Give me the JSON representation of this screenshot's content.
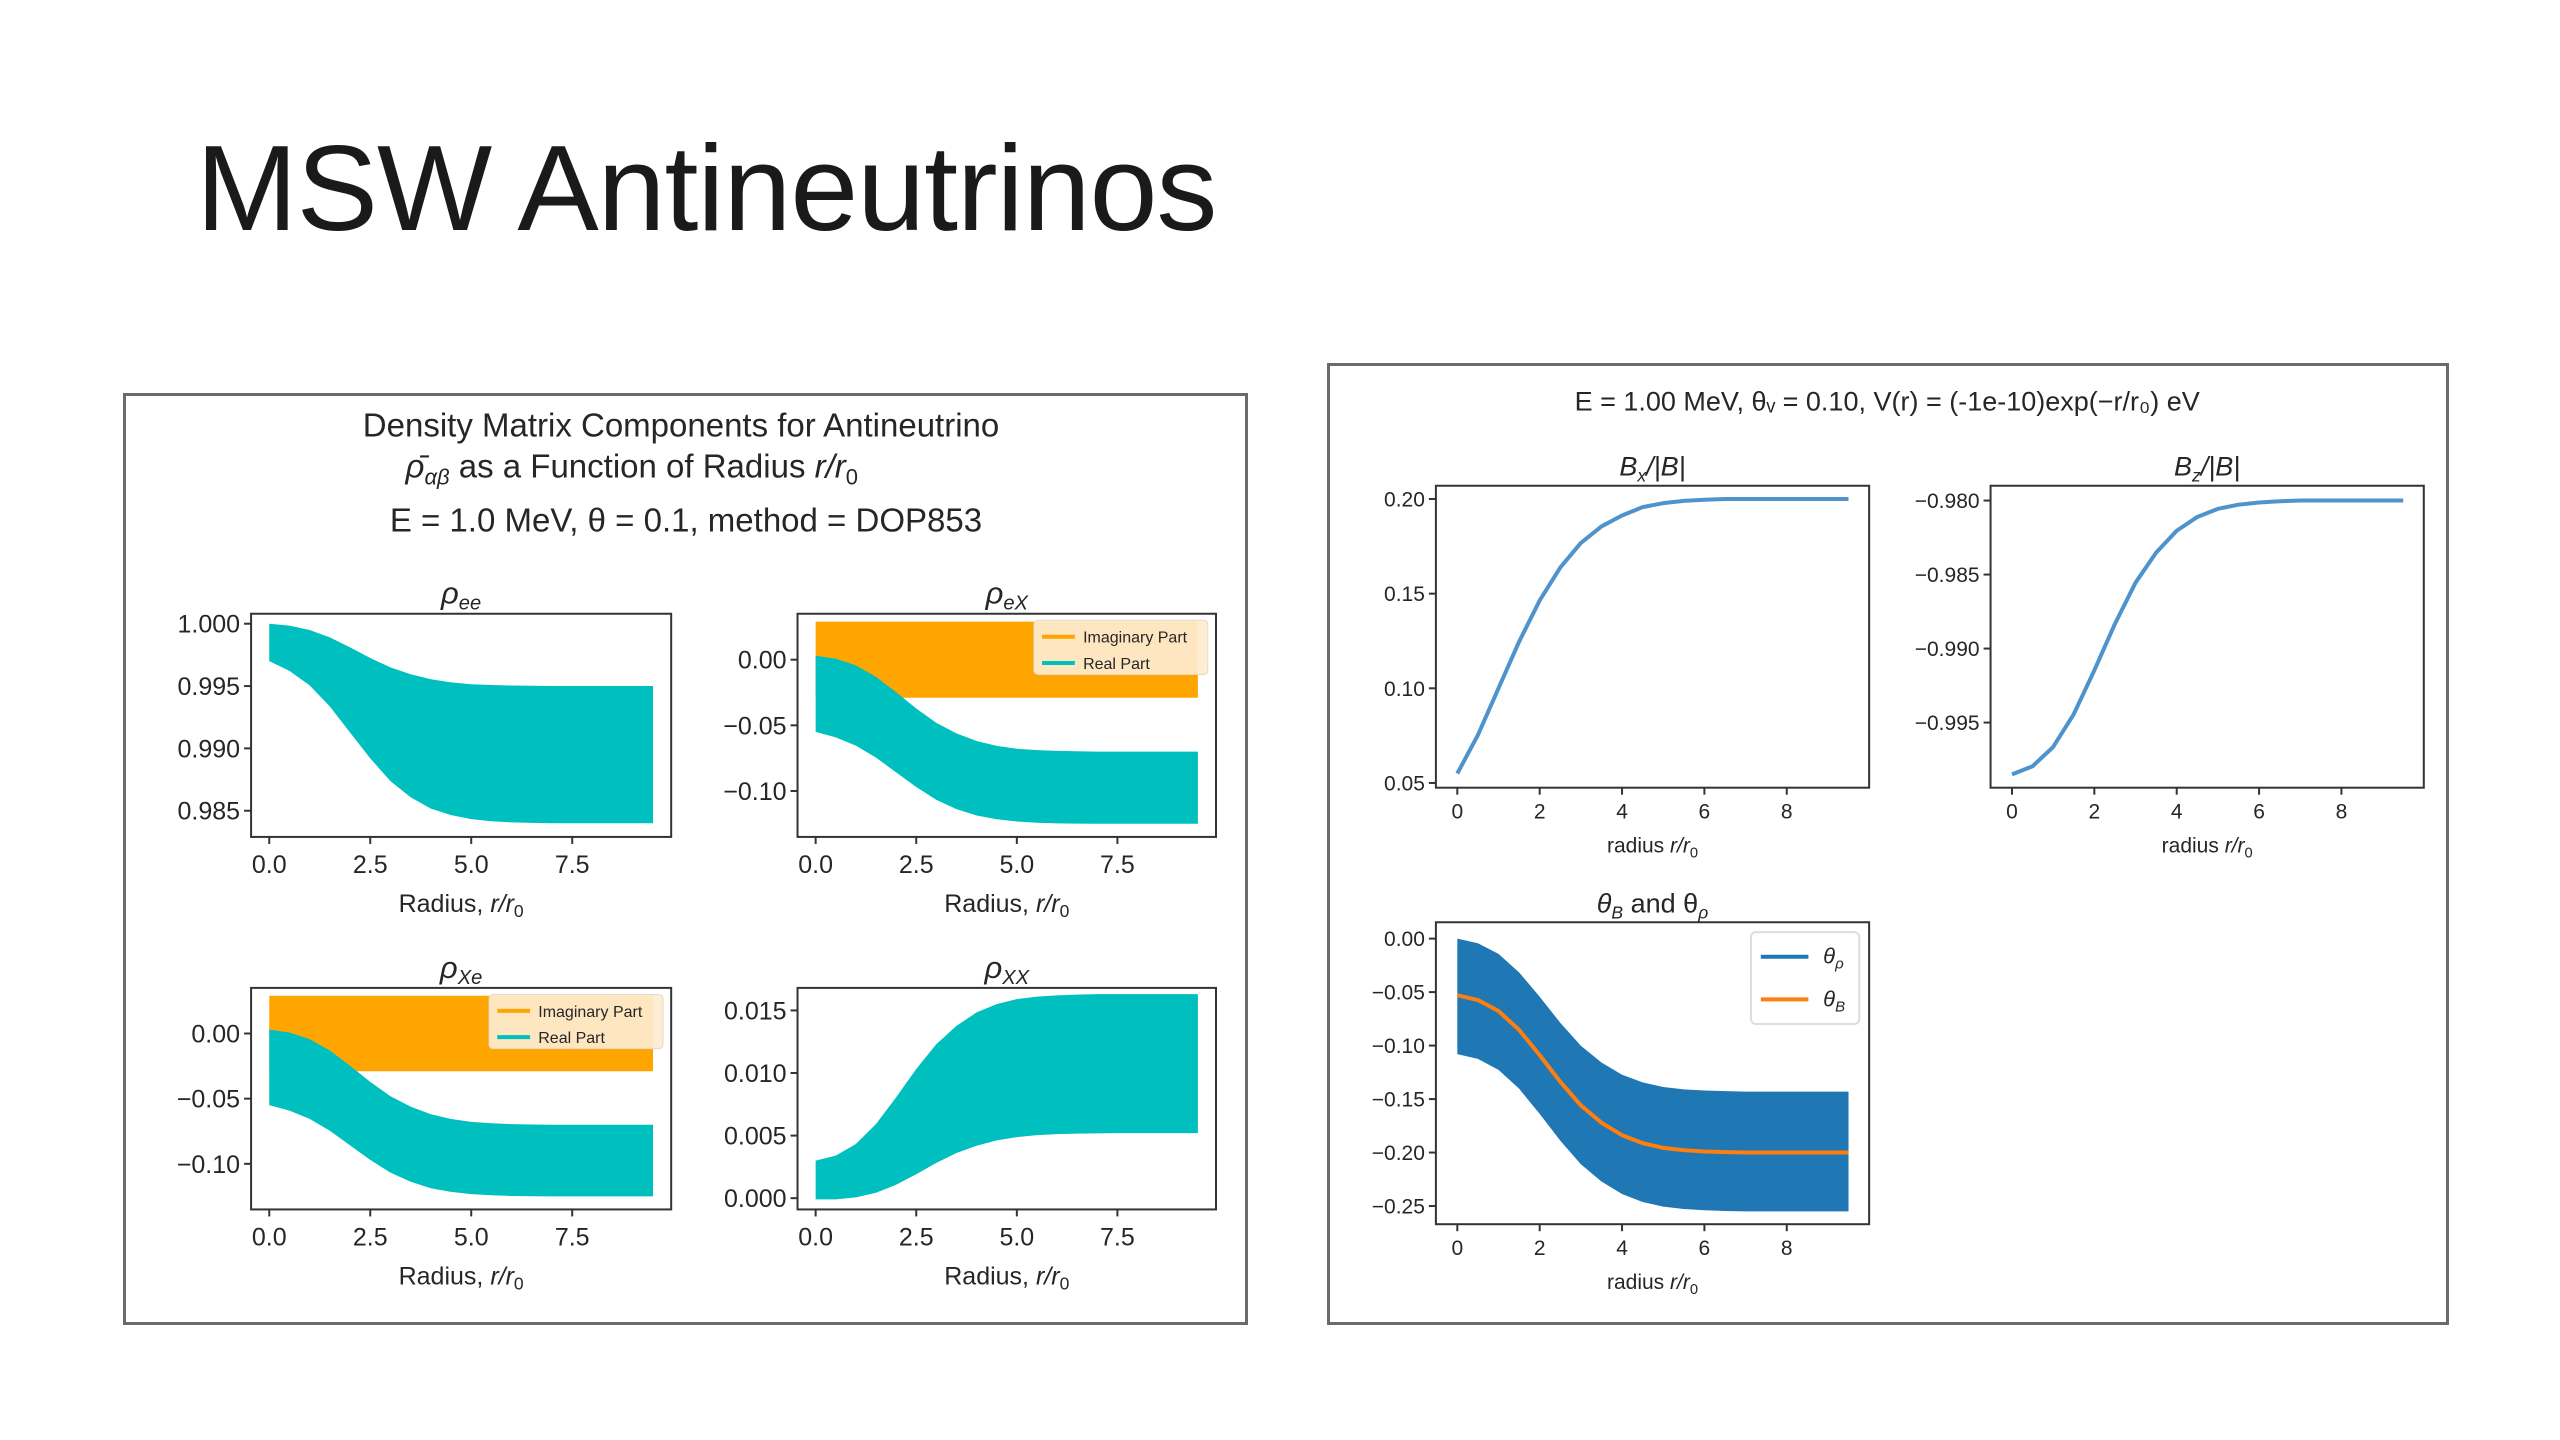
{
  "slide": {
    "title": "MSW Antineutrinos"
  },
  "left_figure": {
    "title_line1": "Density Matrix Components for Antineutrino",
    "title_line2": {
      "rho": "ρ̄",
      "sub": "αβ",
      "rest": " as a Function of Radius ",
      "var": "r/r",
      "var_sub": "0"
    },
    "title_line3": "E = 1.0 MeV, θ = 0.1, method = DOP853"
  },
  "right_figure": {
    "title": "E = 1.00 MeV, θᵥ = 0.10, V(r) = (-1e-10)exp(−r/r₀) eV"
  },
  "colors": {
    "teal": "#00bfbf",
    "orange": "#ffa500",
    "blue": "#1f77b4",
    "line_blue": "#4e93cc",
    "line_orange": "#ff7f0e"
  },
  "chart_data": [
    {
      "id": "rho-ee",
      "type": "area",
      "title": {
        "main": "ρ",
        "sub": "ee"
      },
      "x": [
        0,
        0.5,
        1,
        1.5,
        2,
        2.5,
        3,
        3.5,
        4,
        4.5,
        5,
        5.5,
        6,
        6.5,
        7,
        7.5,
        8,
        8.5,
        9,
        9.5
      ],
      "xlim": [
        -0.45,
        9.95
      ],
      "ylim": [
        0.9829,
        1.0008
      ],
      "xticks": [
        0,
        2.5,
        5,
        7.5
      ],
      "xtick_labels": [
        "0.0",
        "2.5",
        "5.0",
        "7.5"
      ],
      "yticks": [
        0.985,
        0.99,
        0.995,
        1.0
      ],
      "ytick_labels": [
        "0.985",
        "0.990",
        "0.995",
        "1.000"
      ],
      "xlabel": {
        "main": "Radius, ",
        "var": "r/r",
        "sub": "0"
      },
      "series": [
        {
          "name": "Real Part",
          "kind": "band",
          "color": "#00bfbf",
          "upper": [
            1.0,
            0.99985,
            0.9995,
            0.9989,
            0.9981,
            0.99725,
            0.9965,
            0.99595,
            0.99555,
            0.9953,
            0.99515,
            0.99508,
            0.99504,
            0.99502,
            0.995,
            0.995,
            0.995,
            0.995,
            0.995,
            0.995
          ],
          "lower": [
            0.997,
            0.99622,
            0.99505,
            0.99336,
            0.99128,
            0.9892,
            0.98738,
            0.98608,
            0.98517,
            0.98465,
            0.98433,
            0.98416,
            0.98407,
            0.98403,
            0.984,
            0.984,
            0.984,
            0.984,
            0.984,
            0.984
          ]
        }
      ],
      "legend": null
    },
    {
      "id": "rho-ex",
      "type": "area",
      "title": {
        "main": "ρ",
        "sub": "eX"
      },
      "x": [
        0,
        0.5,
        1,
        1.5,
        2,
        2.5,
        3,
        3.5,
        4,
        4.5,
        5,
        5.5,
        6,
        6.5,
        7,
        7.5,
        8,
        8.5,
        9,
        9.5
      ],
      "xlim": [
        -0.45,
        9.95
      ],
      "ylim": [
        -0.135,
        0.035
      ],
      "xticks": [
        0,
        2.5,
        5,
        7.5
      ],
      "xtick_labels": [
        "0.0",
        "2.5",
        "5.0",
        "7.5"
      ],
      "yticks": [
        -0.1,
        -0.05,
        0
      ],
      "ytick_labels": [
        "−0.10",
        "−0.05",
        "0.00"
      ],
      "xlabel": {
        "main": "Radius, ",
        "var": "r/r",
        "sub": "0"
      },
      "series": [
        {
          "name": "Imaginary Part",
          "kind": "band",
          "color": "#ffa500",
          "upper": [
            0.029,
            0.029,
            0.029,
            0.029,
            0.029,
            0.029,
            0.029,
            0.029,
            0.029,
            0.029,
            0.029,
            0.029,
            0.029,
            0.029,
            0.029,
            0.029,
            0.029,
            0.029,
            0.029,
            0.029
          ],
          "lower": [
            -0.029,
            -0.029,
            -0.029,
            -0.029,
            -0.029,
            -0.029,
            -0.029,
            -0.029,
            -0.029,
            -0.029,
            -0.029,
            -0.029,
            -0.029,
            -0.029,
            -0.029,
            -0.029,
            -0.029,
            -0.029,
            -0.029,
            -0.029
          ]
        },
        {
          "name": "Real Part",
          "kind": "band",
          "color": "#00bfbf",
          "upper": [
            0.003,
            0.00081,
            -0.0043,
            -0.01306,
            -0.02474,
            -0.03715,
            -0.0481,
            -0.05613,
            -0.06197,
            -0.06562,
            -0.06781,
            -0.0689,
            -0.06949,
            -0.06978,
            -0.07,
            -0.07,
            -0.07,
            -0.07,
            -0.07,
            -0.07
          ],
          "lower": [
            -0.055,
            -0.0592,
            -0.0655,
            -0.0746,
            -0.0858,
            -0.097,
            -0.1068,
            -0.1138,
            -0.1187,
            -0.1215,
            -0.12325,
            -0.12416,
            -0.12465,
            -0.12486,
            -0.125,
            -0.125,
            -0.125,
            -0.125,
            -0.125,
            -0.125
          ]
        }
      ],
      "legend": {
        "placement": "upper right",
        "style": "tinted",
        "entries": [
          "Imaginary Part",
          "Real Part"
        ]
      }
    },
    {
      "id": "rho-xe",
      "type": "area",
      "title": {
        "main": "ρ",
        "sub": "Xe"
      },
      "x": [
        0,
        0.5,
        1,
        1.5,
        2,
        2.5,
        3,
        3.5,
        4,
        4.5,
        5,
        5.5,
        6,
        6.5,
        7,
        7.5,
        8,
        8.5,
        9,
        9.5
      ],
      "xlim": [
        -0.45,
        9.95
      ],
      "ylim": [
        -0.135,
        0.035
      ],
      "xticks": [
        0,
        2.5,
        5,
        7.5
      ],
      "xtick_labels": [
        "0.0",
        "2.5",
        "5.0",
        "7.5"
      ],
      "yticks": [
        -0.1,
        -0.05,
        0
      ],
      "ytick_labels": [
        "−0.10",
        "−0.05",
        "0.00"
      ],
      "xlabel": {
        "main": "Radius, ",
        "var": "r/r",
        "sub": "0"
      },
      "series": [
        {
          "name": "Imaginary Part",
          "kind": "band",
          "color": "#ffa500",
          "upper": [
            0.029,
            0.029,
            0.029,
            0.029,
            0.029,
            0.029,
            0.029,
            0.029,
            0.029,
            0.029,
            0.029,
            0.029,
            0.029,
            0.029,
            0.029,
            0.029,
            0.029,
            0.029,
            0.029,
            0.029
          ],
          "lower": [
            -0.029,
            -0.029,
            -0.029,
            -0.029,
            -0.029,
            -0.029,
            -0.029,
            -0.029,
            -0.029,
            -0.029,
            -0.029,
            -0.029,
            -0.029,
            -0.029,
            -0.029,
            -0.029,
            -0.029,
            -0.029,
            -0.029,
            -0.029
          ]
        },
        {
          "name": "Real Part",
          "kind": "band",
          "color": "#00bfbf",
          "upper": [
            0.003,
            0.00081,
            -0.0043,
            -0.01306,
            -0.02474,
            -0.03715,
            -0.0481,
            -0.05613,
            -0.06197,
            -0.06562,
            -0.06781,
            -0.0689,
            -0.06949,
            -0.06978,
            -0.07,
            -0.07,
            -0.07,
            -0.07,
            -0.07,
            -0.07
          ],
          "lower": [
            -0.055,
            -0.0592,
            -0.0655,
            -0.0746,
            -0.0858,
            -0.097,
            -0.1068,
            -0.1138,
            -0.1187,
            -0.1215,
            -0.12325,
            -0.12416,
            -0.12465,
            -0.12486,
            -0.125,
            -0.125,
            -0.125,
            -0.125,
            -0.125,
            -0.125
          ]
        }
      ],
      "legend": {
        "placement": "upper right",
        "style": "tinted",
        "entries": [
          "Imaginary Part",
          "Real Part"
        ]
      }
    },
    {
      "id": "rho-xx",
      "type": "area",
      "title": {
        "main": "ρ",
        "sub": "XX"
      },
      "x": [
        0,
        0.5,
        1,
        1.5,
        2,
        2.5,
        3,
        3.5,
        4,
        4.5,
        5,
        5.5,
        6,
        6.5,
        7,
        7.5,
        8,
        8.5,
        9,
        9.5
      ],
      "xlim": [
        -0.45,
        9.95
      ],
      "ylim": [
        -0.0009,
        0.0168
      ],
      "xticks": [
        0,
        2.5,
        5,
        7.5
      ],
      "xtick_labels": [
        "0.0",
        "2.5",
        "5.0",
        "7.5"
      ],
      "yticks": [
        0,
        0.005,
        0.01,
        0.015
      ],
      "ytick_labels": [
        "0.000",
        "0.005",
        "0.010",
        "0.015"
      ],
      "xlabel": {
        "main": "Radius, ",
        "var": "r/r",
        "sub": "0"
      },
      "series": [
        {
          "name": "Real Part",
          "kind": "band",
          "color": "#00bfbf",
          "upper": [
            0.003,
            0.0034,
            0.00433,
            0.00593,
            0.00805,
            0.01032,
            0.01231,
            0.01377,
            0.01484,
            0.0155,
            0.0159,
            0.0161,
            0.0162,
            0.01626,
            0.0163,
            0.0163,
            0.0163,
            0.0163,
            0.0163,
            0.0163
          ],
          "lower": [
            -0.0001,
            -0.0001,
            6e-05,
            0.00043,
            0.00107,
            0.00191,
            0.00282,
            0.00361,
            0.00419,
            0.00462,
            0.00488,
            0.00504,
            0.00512,
            0.00516,
            0.00518,
            0.0052,
            0.0052,
            0.0052,
            0.0052,
            0.0052
          ]
        }
      ],
      "legend": null
    },
    {
      "id": "bx",
      "type": "line",
      "title": {
        "main": "B",
        "sub": "x",
        "rest": "/|B|"
      },
      "x": [
        0,
        0.5,
        1,
        1.5,
        2,
        2.5,
        3,
        3.5,
        4,
        4.5,
        5,
        5.5,
        6,
        6.5,
        7,
        7.5,
        8,
        8.5,
        9,
        9.5
      ],
      "xlim": [
        -0.52,
        10.0
      ],
      "ylim": [
        0.0475,
        0.207
      ],
      "xticks": [
        0,
        2,
        4,
        6,
        8
      ],
      "xtick_labels": [
        "0",
        "2",
        "4",
        "6",
        "8"
      ],
      "yticks": [
        0.05,
        0.1,
        0.15,
        0.2
      ],
      "ytick_labels": [
        "0.05",
        "0.10",
        "0.15",
        "0.20"
      ],
      "xlabel": {
        "main": "radius ",
        "var": "r/r",
        "sub": "0"
      },
      "series": [
        {
          "name": "Bx/|B|",
          "kind": "line",
          "color": "#4e93cc",
          "y": [
            0.055,
            0.0753,
            0.1,
            0.1246,
            0.1464,
            0.1638,
            0.1768,
            0.1855,
            0.1913,
            0.1957,
            0.1978,
            0.199,
            0.1996,
            0.2,
            0.2,
            0.2,
            0.2,
            0.2,
            0.2,
            0.2
          ]
        }
      ],
      "legend": null
    },
    {
      "id": "bz",
      "type": "line",
      "title": {
        "main": "B",
        "sub": "z",
        "rest": "/|B|"
      },
      "x": [
        0,
        0.5,
        1,
        1.5,
        2,
        2.5,
        3,
        3.5,
        4,
        4.5,
        5,
        5.5,
        6,
        6.5,
        7,
        7.5,
        8,
        8.5,
        9,
        9.5
      ],
      "xlim": [
        -0.52,
        10.0
      ],
      "ylim": [
        -0.9994,
        -0.979
      ],
      "xticks": [
        0,
        2,
        4,
        6,
        8
      ],
      "xtick_labels": [
        "0",
        "2",
        "4",
        "6",
        "8"
      ],
      "yticks": [
        -0.995,
        -0.99,
        -0.985,
        -0.98
      ],
      "ytick_labels": [
        "−0.995",
        "−0.990",
        "−0.985",
        "−0.980"
      ],
      "xlabel": {
        "main": "radius ",
        "var": "r/r",
        "sub": "0"
      },
      "series": [
        {
          "name": "Bz/|B|",
          "kind": "line",
          "color": "#4e93cc",
          "y": [
            -0.9985,
            -0.99795,
            -0.99665,
            -0.99443,
            -0.99147,
            -0.98833,
            -0.98555,
            -0.98352,
            -0.98204,
            -0.98111,
            -0.98056,
            -0.98028,
            -0.98013,
            -0.98005,
            -0.98,
            -0.98,
            -0.98,
            -0.98,
            -0.98,
            -0.98
          ]
        }
      ],
      "legend": null
    },
    {
      "id": "theta",
      "type": "area",
      "title": {
        "main": "θ",
        "sub": "B",
        "rest": " and θ",
        "sub2": "ρ"
      },
      "x": [
        0,
        0.5,
        1,
        1.5,
        2,
        2.5,
        3,
        3.5,
        4,
        4.5,
        5,
        5.5,
        6,
        6.5,
        7,
        7.5,
        8,
        8.5,
        9,
        9.5
      ],
      "xlim": [
        -0.52,
        10.0
      ],
      "ylim": [
        -0.267,
        0.0153
      ],
      "xticks": [
        0,
        2,
        4,
        6,
        8
      ],
      "xtick_labels": [
        "0",
        "2",
        "4",
        "6",
        "8"
      ],
      "yticks": [
        -0.25,
        -0.2,
        -0.15,
        -0.1,
        -0.05,
        0
      ],
      "ytick_labels": [
        "−0.25",
        "−0.20",
        "−0.15",
        "−0.10",
        "−0.05",
        "0.00"
      ],
      "xlabel": {
        "main": "radius ",
        "var": "r/r",
        "sub": "0"
      },
      "series": [
        {
          "name": "θρ",
          "kind": "band",
          "color": "#1f77b4",
          "upper": [
            0,
            -0.0043,
            -0.0143,
            -0.0315,
            -0.0543,
            -0.0787,
            -0.1001,
            -0.1158,
            -0.1273,
            -0.1344,
            -0.1387,
            -0.1409,
            -0.142,
            -0.1426,
            -0.143,
            -0.143,
            -0.143,
            -0.143,
            -0.143,
            -0.143
          ],
          "lower": [
            -0.108,
            -0.1124,
            -0.1227,
            -0.1403,
            -0.1639,
            -0.1889,
            -0.2109,
            -0.2271,
            -0.2388,
            -0.2462,
            -0.2506,
            -0.2528,
            -0.254,
            -0.2546,
            -0.255,
            -0.255,
            -0.255,
            -0.255,
            -0.255,
            -0.255
          ]
        },
        {
          "name": "θB",
          "kind": "line",
          "color": "#ff7f0e",
          "y": [
            -0.053,
            -0.0574,
            -0.0677,
            -0.0853,
            -0.1089,
            -0.1339,
            -0.1559,
            -0.1721,
            -0.1838,
            -0.1912,
            -0.1956,
            -0.1978,
            -0.199,
            -0.1996,
            -0.2,
            -0.2,
            -0.2,
            -0.2,
            -0.2,
            -0.2
          ]
        }
      ],
      "legend": {
        "placement": "upper right",
        "style": "white",
        "entries": [
          {
            "main": "θ",
            "sub": "ρ"
          },
          {
            "main": "θ",
            "sub": "B"
          }
        ]
      }
    }
  ]
}
